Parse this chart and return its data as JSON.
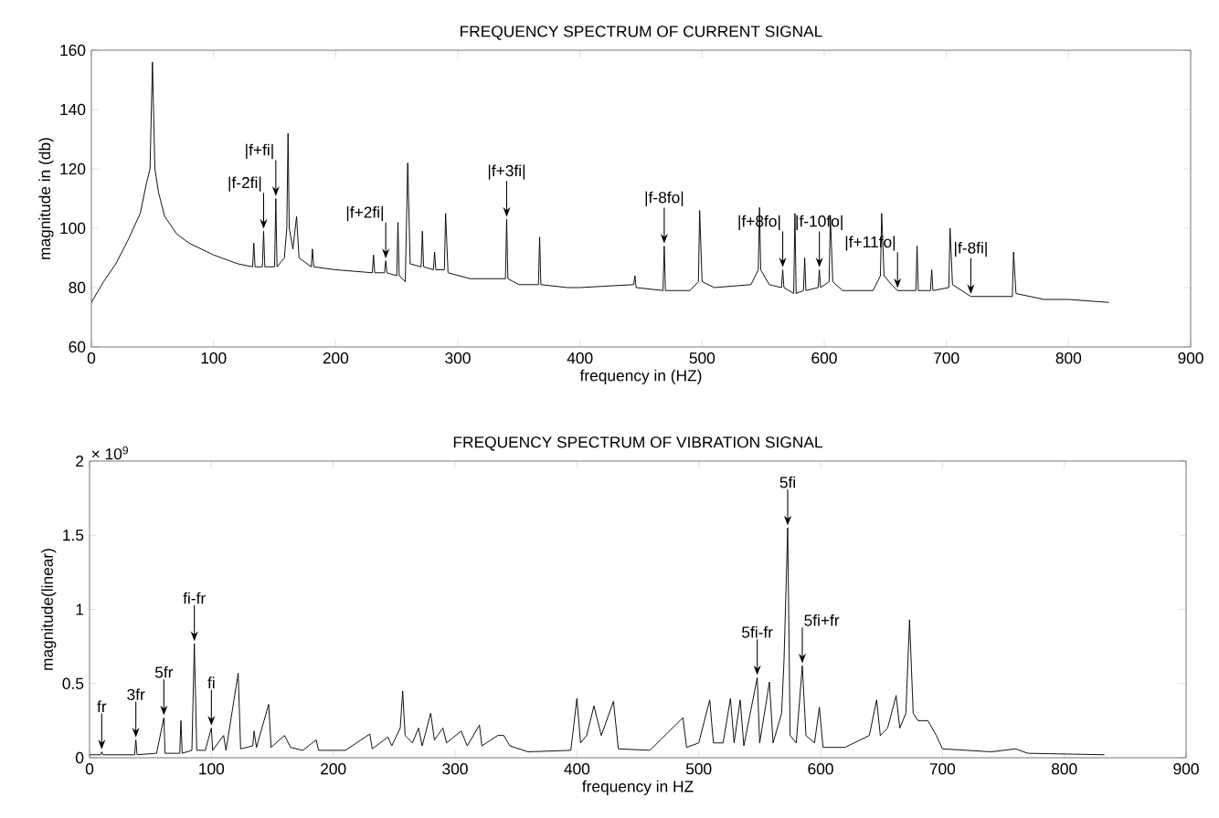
{
  "chart_data": [
    {
      "type": "line",
      "title": "FREQUENCY SPECTRUM OF CURRENT SIGNAL",
      "xlabel": "frequency in (HZ)",
      "ylabel": "magnitude in (db)",
      "xlim": [
        0,
        900
      ],
      "ylim": [
        60,
        160
      ],
      "xticks": [
        0,
        100,
        200,
        300,
        400,
        500,
        600,
        700,
        800,
        900
      ],
      "yticks": [
        60,
        80,
        100,
        120,
        140,
        160
      ],
      "grid": false,
      "series": [
        {
          "color": "#000000",
          "x": [
            0,
            10,
            20,
            30,
            40,
            45,
            48,
            50,
            52,
            55,
            60,
            70,
            80,
            100,
            120,
            132,
            133,
            134,
            140,
            141,
            142,
            150,
            151,
            152,
            158,
            160,
            161,
            162,
            165,
            168,
            170,
            180,
            181,
            182,
            200,
            230,
            231,
            232,
            240,
            241,
            242,
            250,
            251,
            252,
            257,
            259,
            261,
            270,
            271,
            272,
            280,
            281,
            282,
            289,
            290,
            292,
            310,
            339,
            340,
            341,
            350,
            366,
            367,
            368,
            390,
            400,
            444,
            445,
            446,
            468,
            469,
            470,
            490,
            497,
            498,
            500,
            510,
            540,
            546,
            547,
            548,
            555,
            565,
            566,
            567,
            575,
            576,
            577,
            583,
            584,
            585,
            595,
            596,
            597,
            604,
            605,
            607,
            615,
            640,
            646,
            647,
            649,
            655,
            660,
            675,
            676,
            677,
            687,
            688,
            689,
            702,
            703,
            705,
            720,
            740,
            754,
            755,
            757,
            780,
            800,
            833
          ],
          "values": [
            75,
            82,
            88,
            96,
            105,
            115,
            120,
            156,
            120,
            112,
            104,
            98,
            95,
            91,
            88,
            87,
            95,
            87,
            87,
            99,
            87,
            87,
            110,
            87,
            90,
            100,
            132,
            100,
            93,
            104,
            90,
            87,
            93,
            87,
            86,
            85,
            91,
            85,
            85,
            89,
            85,
            84,
            102,
            84,
            82,
            122,
            88,
            87,
            99,
            87,
            86,
            92,
            86,
            86,
            105,
            85,
            83,
            83,
            103,
            83,
            81,
            81,
            97,
            81,
            80,
            80,
            81,
            84,
            80,
            79,
            94,
            79,
            79,
            82,
            106,
            82,
            80,
            81,
            86,
            107,
            86,
            81,
            80,
            86,
            80,
            78,
            105,
            78,
            79,
            90,
            79,
            80,
            86,
            80,
            82,
            104,
            82,
            79,
            79,
            84,
            105,
            84,
            81,
            79,
            79,
            94,
            79,
            79,
            86,
            79,
            80,
            100,
            81,
            77,
            77,
            77,
            92,
            78,
            76,
            76,
            75
          ]
        }
      ],
      "annotations": [
        {
          "text": "|f-2fi|",
          "x": 141,
          "y": 99
        },
        {
          "text": "|f+fi|",
          "x": 151,
          "y": 110
        },
        {
          "text": "|f+2fi|",
          "x": 241,
          "y": 89
        },
        {
          "text": "|f+3fi|",
          "x": 340,
          "y": 103
        },
        {
          "text": "|f-8fo|",
          "x": 469,
          "y": 94
        },
        {
          "text": "|f+8fo|",
          "x": 566,
          "y": 86
        },
        {
          "text": "|f-10fo|",
          "x": 596,
          "y": 86
        },
        {
          "text": "|f+11fo|",
          "x": 660,
          "y": 79
        },
        {
          "text": "|f-8fi|",
          "x": 720,
          "y": 77
        }
      ]
    },
    {
      "type": "line",
      "title": "FREQUENCY SPECTRUM OF VIBRATION SIGNAL",
      "xlabel": "frequency in HZ",
      "ylabel": "magnitude(linear)",
      "xlim": [
        0,
        900
      ],
      "ylim": [
        0,
        2
      ],
      "xticks": [
        0,
        100,
        200,
        300,
        400,
        500,
        600,
        700,
        800,
        900
      ],
      "yticks": [
        0,
        0.5,
        1,
        1.5,
        2
      ],
      "grid": false,
      "series": [
        {
          "color": "#000000",
          "x": [
            0,
            9,
            10,
            11,
            37,
            38,
            39,
            55,
            61,
            62,
            74,
            75,
            76,
            84,
            86,
            88,
            95,
            100,
            101,
            110,
            112,
            122,
            124,
            134,
            135,
            137,
            147,
            149,
            160,
            165,
            175,
            186,
            188,
            210,
            230,
            232,
            245,
            248,
            255,
            257,
            259,
            265,
            270,
            273,
            280,
            283,
            290,
            293,
            305,
            310,
            320,
            322,
            335,
            340,
            345,
            360,
            395,
            400,
            403,
            408,
            414,
            420,
            430,
            434,
            460,
            487,
            490,
            500,
            509,
            512,
            520,
            526,
            529,
            534,
            537,
            548,
            550,
            558,
            561,
            568,
            570,
            573,
            575,
            580,
            585,
            588,
            595,
            599,
            602,
            620,
            640,
            646,
            649,
            655,
            662,
            665,
            670,
            673,
            676,
            680,
            688,
            695,
            700,
            740,
            760,
            770,
            833
          ],
          "values": [
            0.02,
            0.02,
            0.04,
            0.02,
            0.02,
            0.12,
            0.02,
            0.03,
            0.27,
            0.03,
            0.03,
            0.25,
            0.03,
            0.05,
            0.77,
            0.05,
            0.05,
            0.2,
            0.05,
            0.15,
            0.05,
            0.57,
            0.06,
            0.08,
            0.18,
            0.07,
            0.36,
            0.07,
            0.15,
            0.07,
            0.05,
            0.12,
            0.05,
            0.05,
            0.16,
            0.06,
            0.14,
            0.08,
            0.2,
            0.45,
            0.15,
            0.1,
            0.2,
            0.08,
            0.3,
            0.12,
            0.2,
            0.1,
            0.18,
            0.08,
            0.22,
            0.08,
            0.15,
            0.15,
            0.08,
            0.04,
            0.05,
            0.4,
            0.1,
            0.15,
            0.35,
            0.15,
            0.38,
            0.06,
            0.05,
            0.27,
            0.07,
            0.1,
            0.39,
            0.1,
            0.1,
            0.4,
            0.1,
            0.39,
            0.08,
            0.54,
            0.1,
            0.51,
            0.1,
            0.3,
            0.66,
            1.55,
            0.15,
            0.1,
            0.62,
            0.15,
            0.1,
            0.34,
            0.07,
            0.07,
            0.15,
            0.39,
            0.15,
            0.2,
            0.42,
            0.2,
            0.3,
            0.93,
            0.3,
            0.25,
            0.25,
            0.15,
            0.06,
            0.04,
            0.06,
            0.03,
            0.02
          ]
        }
      ],
      "annotations": [
        "× 10$^{9}$",
        {
          "text": "fr",
          "x": 10,
          "y": 0.04
        },
        {
          "text": "3fr",
          "x": 38,
          "y": 0.12
        },
        {
          "text": "5fr",
          "x": 61,
          "y": 0.27
        },
        {
          "text": "fi-fr",
          "x": 86,
          "y": 0.77
        },
        {
          "text": "fi",
          "x": 100,
          "y": 0.2
        },
        {
          "text": "5fi",
          "x": 573,
          "y": 1.55
        },
        {
          "text": "5fi-fr",
          "x": 548,
          "y": 0.54
        },
        {
          "text": "5fi+fr",
          "x": 585,
          "y": 0.62
        }
      ]
    }
  ]
}
